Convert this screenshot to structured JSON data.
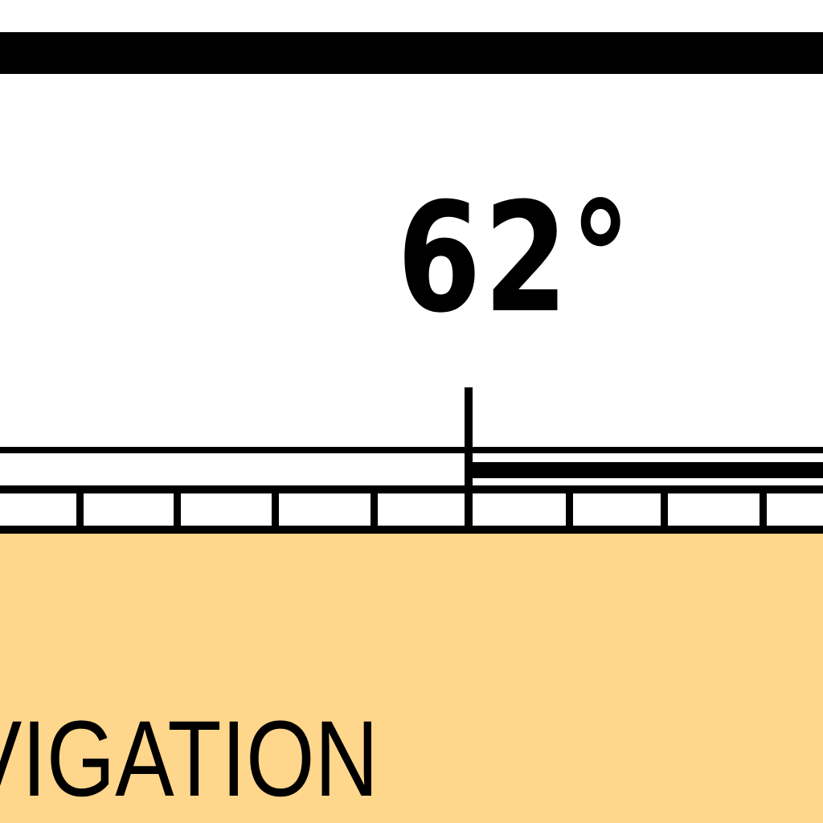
{
  "map": {
    "angle_label": "62°",
    "panel_text": "VIGATION",
    "colors": {
      "ink": "#000000",
      "paper": "#ffffff",
      "panel": "#fed68c"
    }
  }
}
